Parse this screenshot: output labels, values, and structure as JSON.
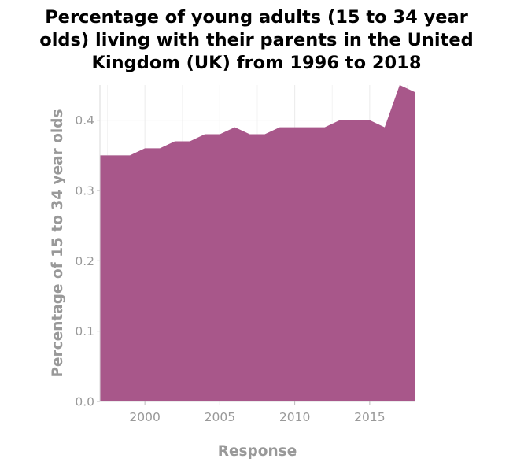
{
  "chart_data": {
    "type": "area",
    "title": "Percentage of young adults (15 to 34 year olds) living with their parents in the United Kingdom (UK) from 1996 to 2018",
    "title_lines": [
      "Percentage of young adults (15 to 34 year",
      "olds) living with their parents in the United",
      "Kingdom (UK) from 1996 to 2018"
    ],
    "xlabel": "Response",
    "ylabel": "Percentage of 15 to 34 year olds",
    "x": [
      1997,
      1998,
      1999,
      2000,
      2001,
      2002,
      2003,
      2004,
      2005,
      2006,
      2007,
      2008,
      2009,
      2010,
      2011,
      2012,
      2013,
      2014,
      2015,
      2016,
      2017,
      2018
    ],
    "series": [
      {
        "values": [
          0.35,
          0.35,
          0.35,
          0.36,
          0.36,
          0.37,
          0.37,
          0.38,
          0.38,
          0.39,
          0.38,
          0.38,
          0.39,
          0.39,
          0.39,
          0.39,
          0.4,
          0.4,
          0.4,
          0.39,
          0.45,
          0.44
        ],
        "color": "#a8578a"
      }
    ],
    "xlim": [
      1997,
      2018
    ],
    "ylim": [
      0,
      0.45
    ],
    "x_ticks": [
      2000,
      2005,
      2010,
      2015
    ],
    "x_tick_labels": [
      "2000",
      "2005",
      "2010",
      "2015"
    ],
    "y_ticks": [
      0.0,
      0.1,
      0.2,
      0.3,
      0.4
    ],
    "y_tick_labels": [
      "0.0",
      "0.1",
      "0.2",
      "0.3",
      "0.4"
    ],
    "grid": true,
    "legend": "none"
  }
}
